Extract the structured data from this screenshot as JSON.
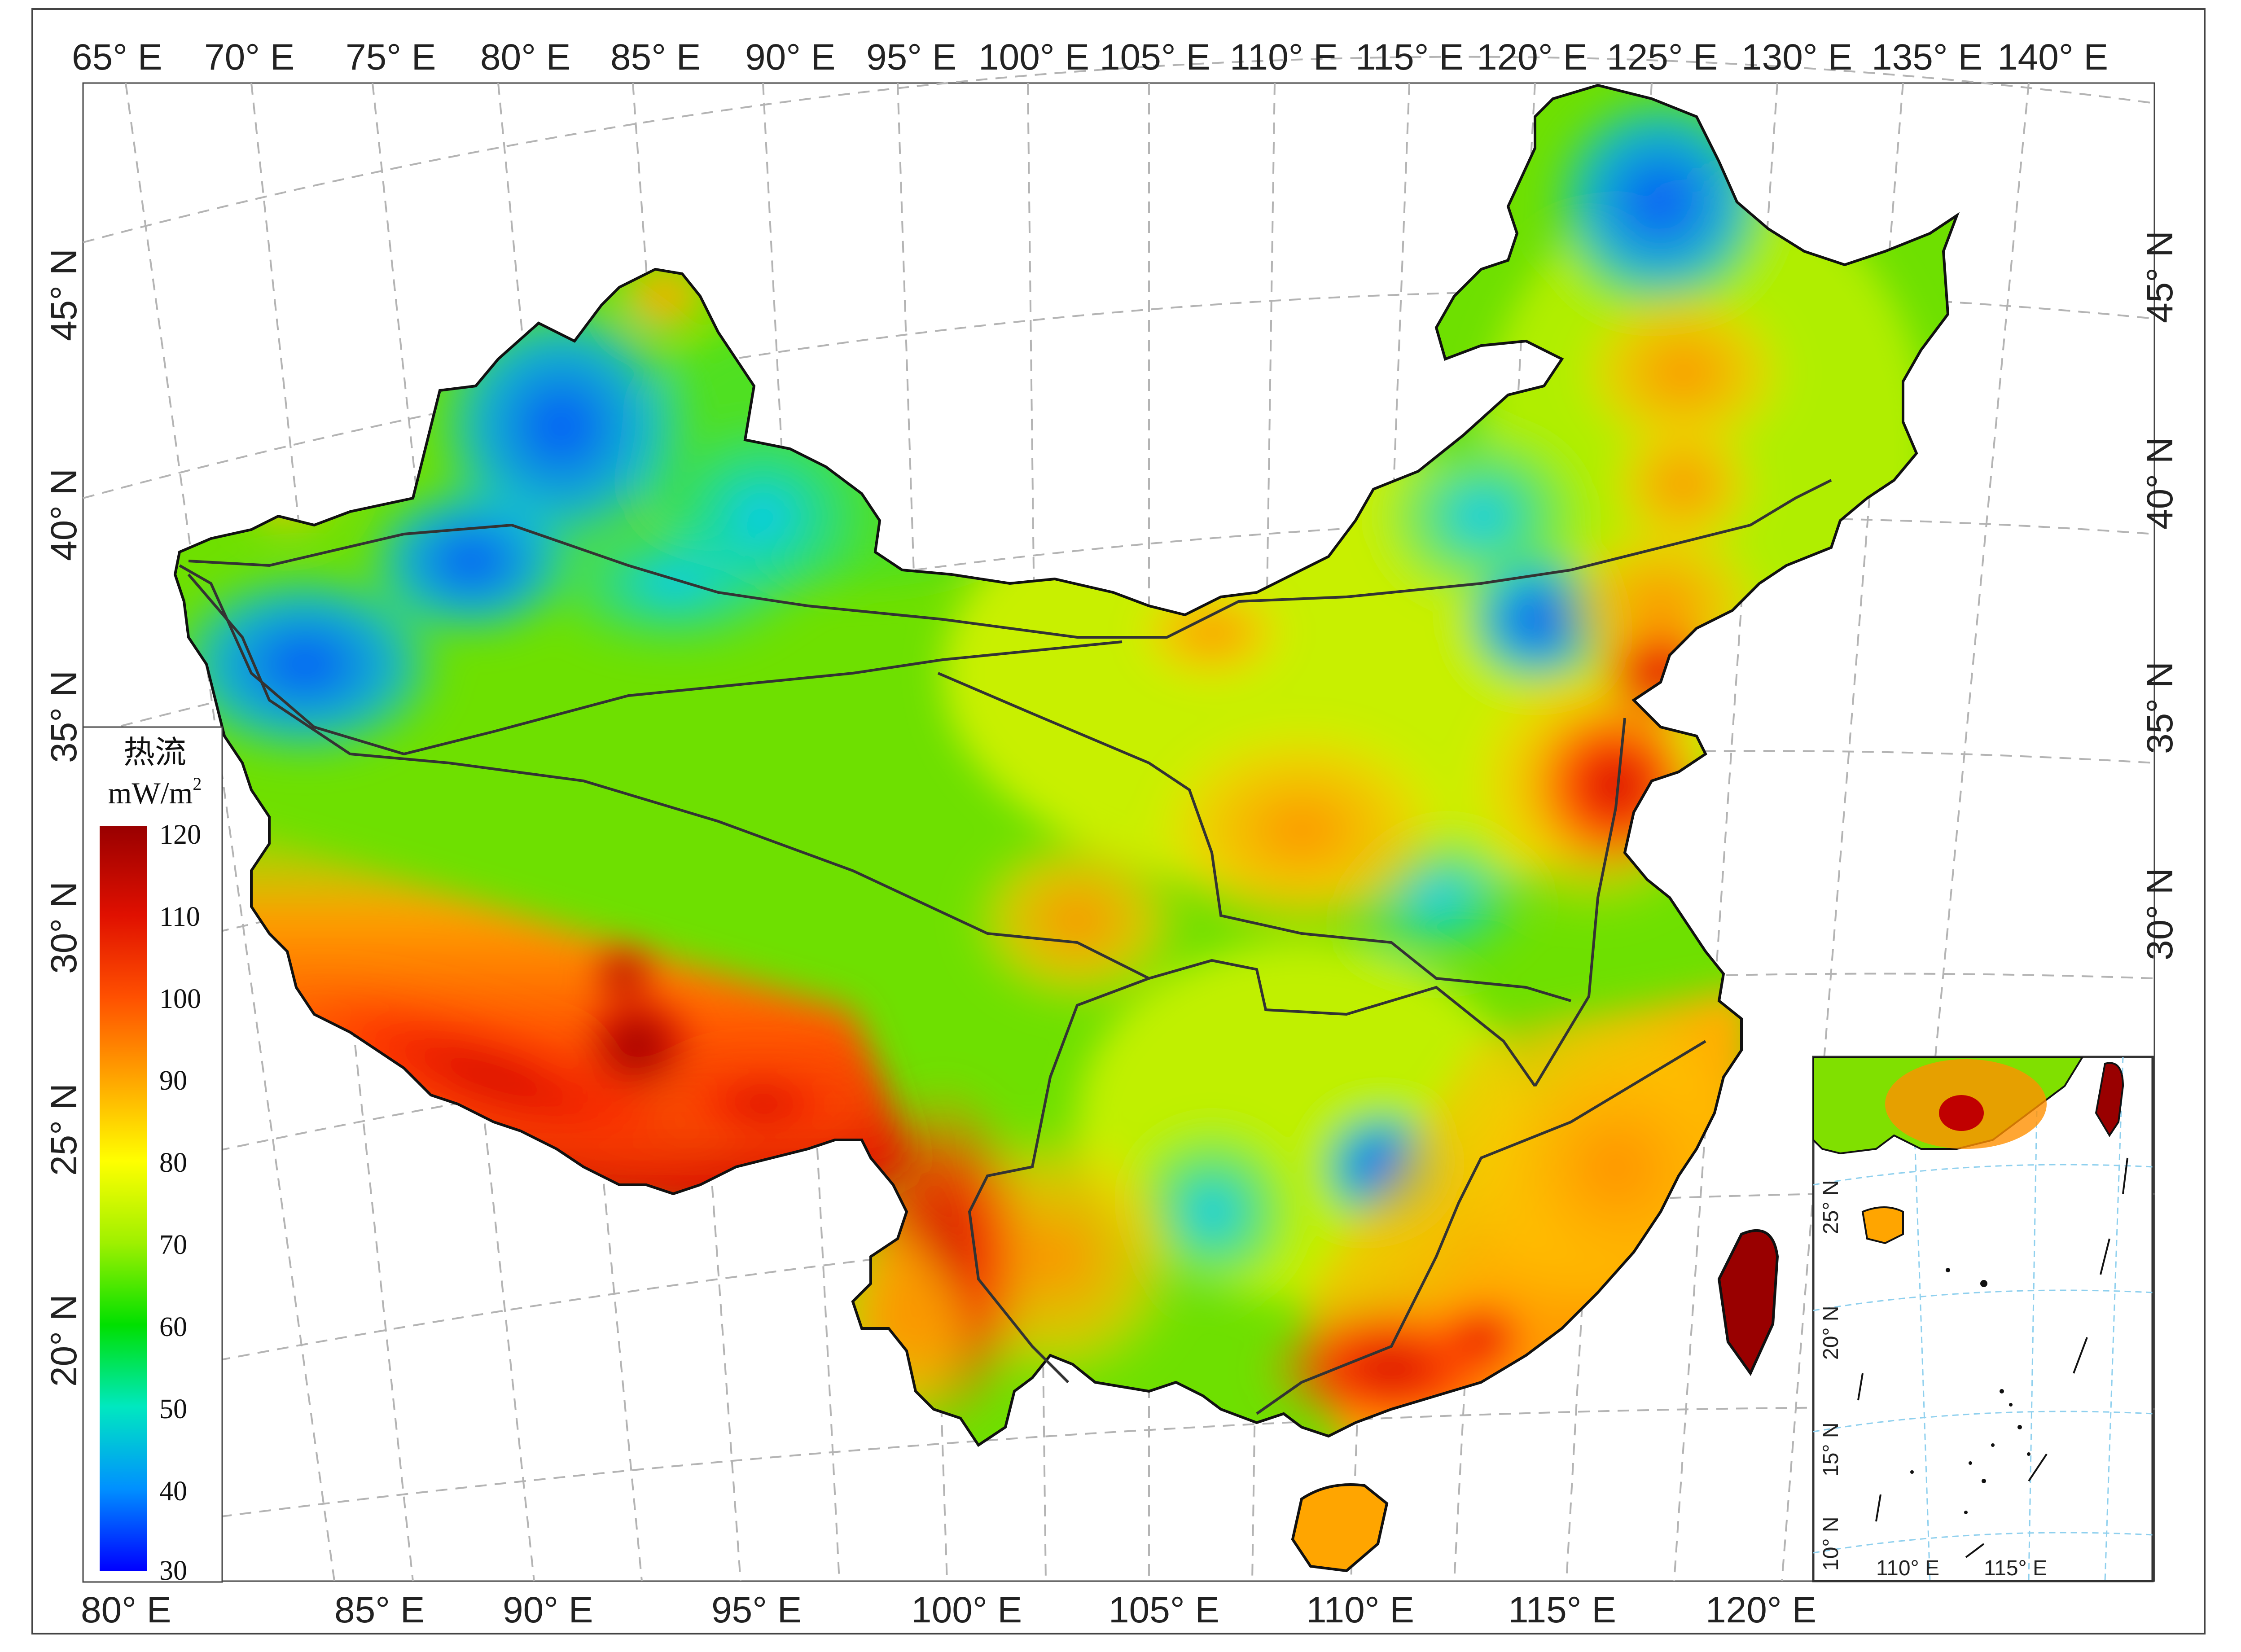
{
  "top_axis": [
    "65° E",
    "70° E",
    "75° E",
    "80° E",
    "85° E",
    "90° E",
    "95° E",
    "100° E",
    "105° E",
    "110° E",
    "115° E",
    "120° E",
    "125° E",
    "130° E",
    "135° E",
    "140° E"
  ],
  "bottom_axis": [
    "80° E",
    "85° E",
    "90° E",
    "95° E",
    "100° E",
    "105° E",
    "110° E",
    "115° E",
    "120° E"
  ],
  "left_axis": [
    "45° N",
    "40° N",
    "35° N",
    "30° N",
    "25° N",
    "20° N"
  ],
  "right_axis": [
    "45° N",
    "40° N",
    "35° N",
    "30° N"
  ],
  "legend": {
    "title": "热流",
    "unit": "mW/m",
    "unit_sup": "2",
    "ticks": [
      "120",
      "110",
      "100",
      "90",
      "80",
      "70",
      "60",
      "50",
      "40",
      "30"
    ],
    "min": 30,
    "max": 120,
    "colors": [
      "#0000ff",
      "#0090ff",
      "#00e8c0",
      "#00e000",
      "#9ff000",
      "#ffff00",
      "#ffa500",
      "#ff5000",
      "#e01000",
      "#990000"
    ]
  },
  "inset": {
    "lat_labels": [
      "25° N",
      "20° N",
      "15° N",
      "10° N"
    ],
    "lon_labels": [
      "110° E",
      "115° E"
    ]
  }
}
